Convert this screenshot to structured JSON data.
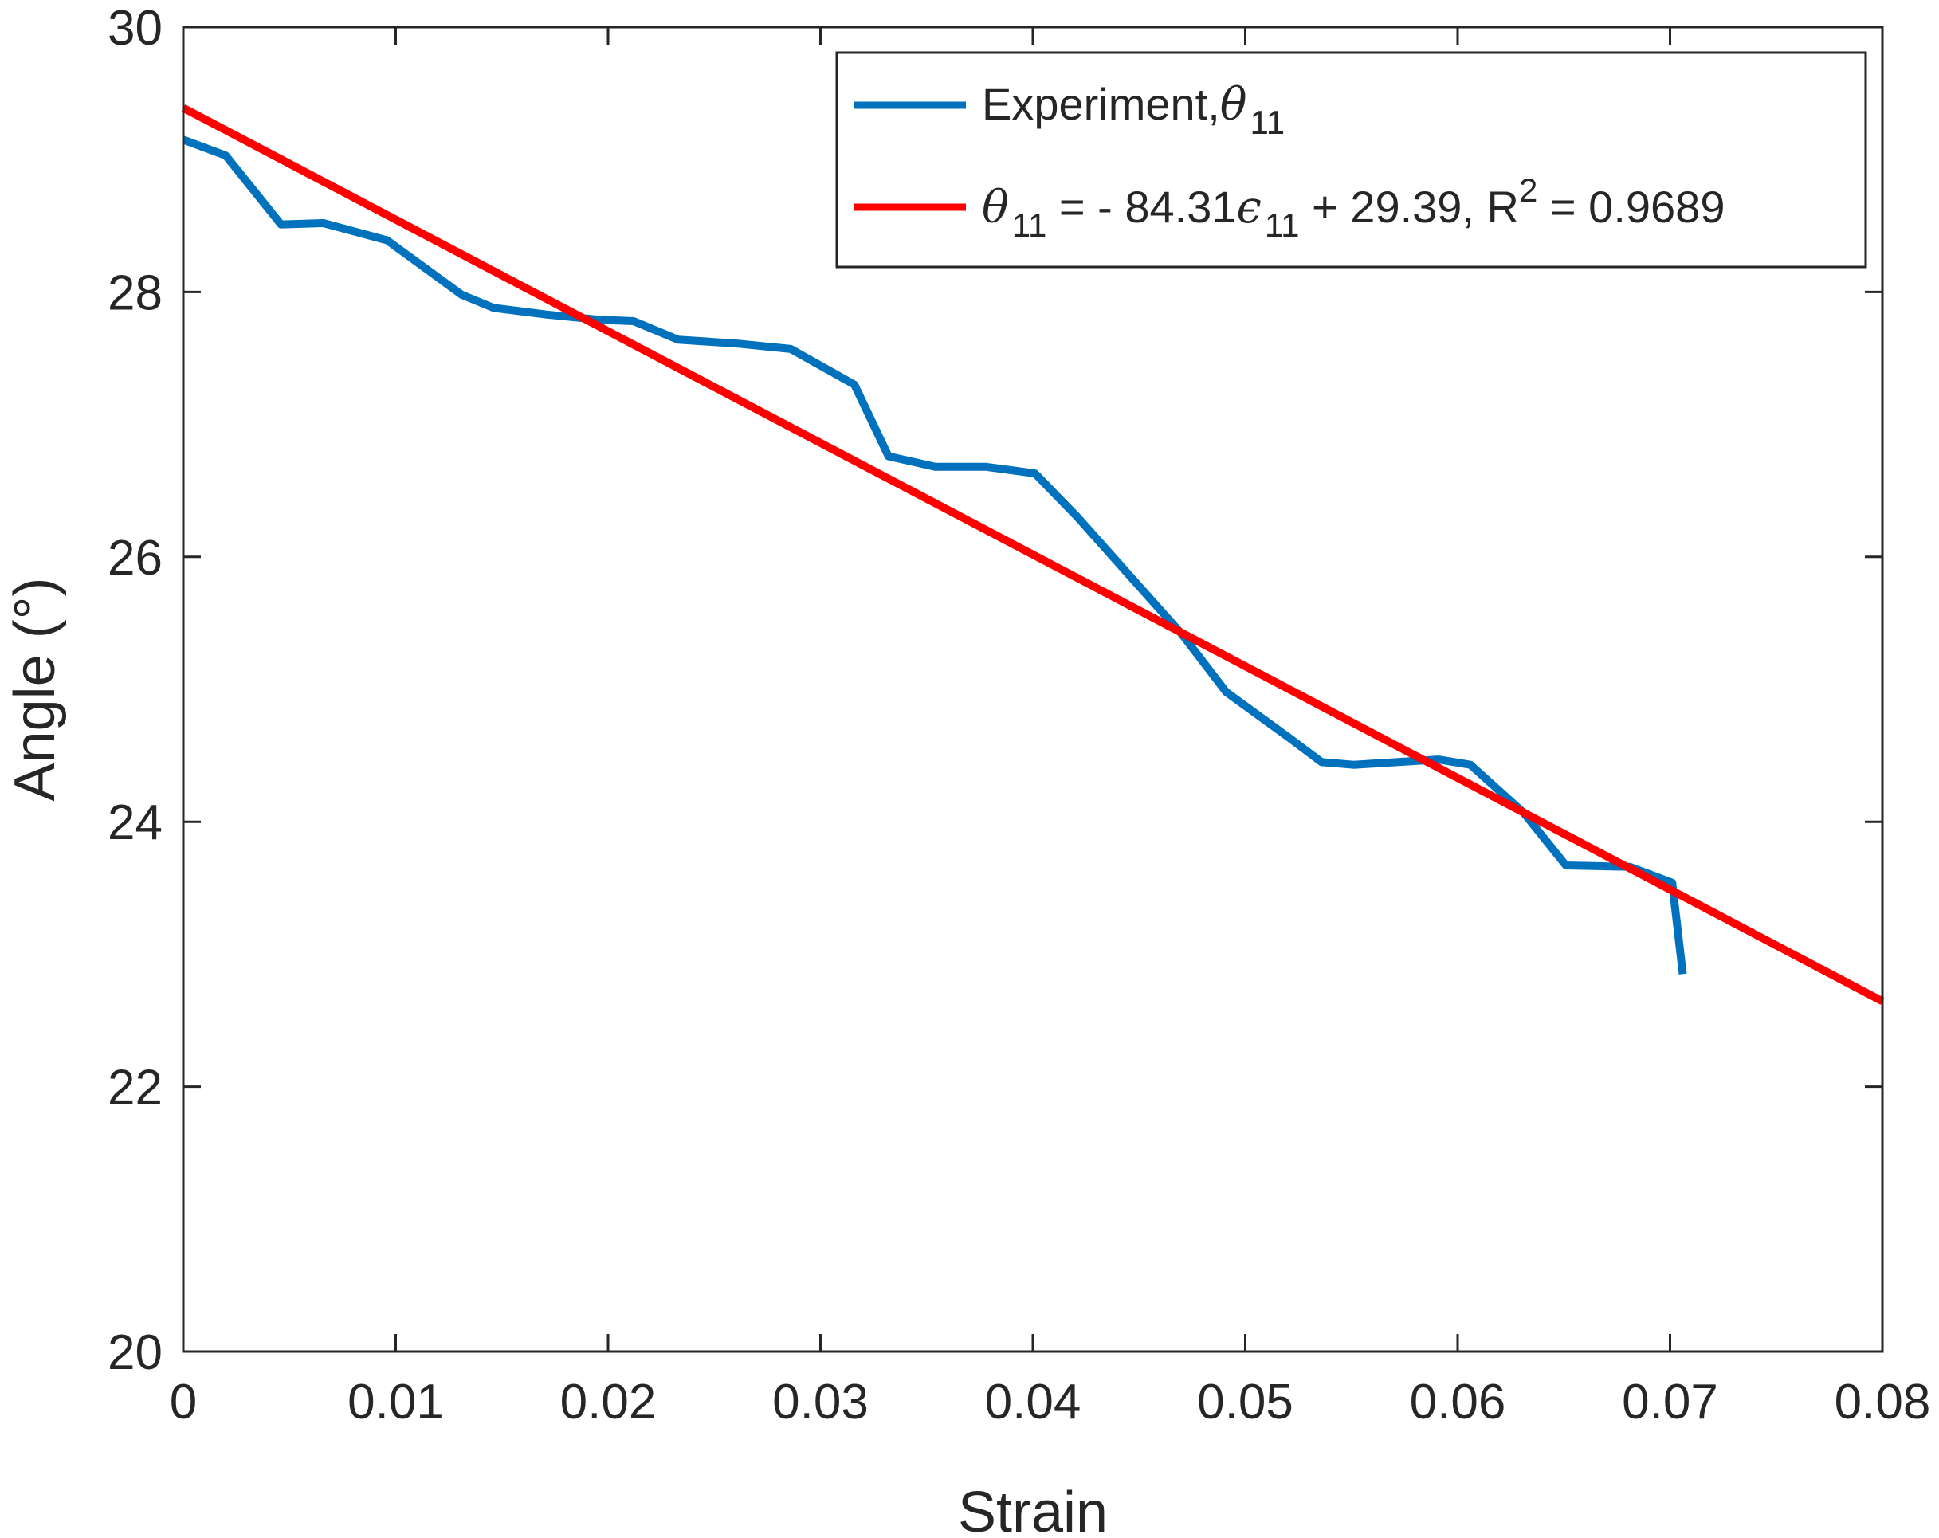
{
  "chart_data": {
    "type": "line",
    "xlabel": "Strain",
    "ylabel": "Angle (°)",
    "xlim": [
      0,
      0.08
    ],
    "ylim": [
      20,
      30
    ],
    "xticks": [
      0,
      0.01,
      0.02,
      0.03,
      0.04,
      0.05,
      0.06,
      0.07,
      0.08
    ],
    "xtick_labels": [
      "0",
      "0.01",
      "0.02",
      "0.03",
      "0.04",
      "0.05",
      "0.06",
      "0.07",
      "0.08"
    ],
    "yticks": [
      20,
      22,
      24,
      26,
      28,
      30
    ],
    "ytick_labels": [
      "20",
      "22",
      "24",
      "26",
      "28",
      "30"
    ],
    "grid": false,
    "legend_position": "top-right",
    "series": [
      {
        "name": "Experiment, θ11",
        "color": "#0072BD",
        "x": [
          0,
          0.002,
          0.0046,
          0.0066,
          0.0096,
          0.0131,
          0.0146,
          0.0171,
          0.0196,
          0.0212,
          0.0233,
          0.0261,
          0.0286,
          0.0316,
          0.0332,
          0.0354,
          0.0378,
          0.0401,
          0.0421,
          0.0446,
          0.047,
          0.0491,
          0.0521,
          0.0536,
          0.0551,
          0.0581,
          0.0591,
          0.0606,
          0.0631,
          0.0651,
          0.0681,
          0.0701,
          0.0706
        ],
        "y": [
          29.15,
          29.03,
          28.51,
          28.52,
          28.39,
          27.98,
          27.88,
          27.83,
          27.79,
          27.78,
          27.64,
          27.61,
          27.57,
          27.3,
          26.76,
          26.68,
          26.68,
          26.63,
          26.3,
          25.85,
          25.42,
          24.98,
          24.63,
          24.45,
          24.43,
          24.46,
          24.47,
          24.43,
          24.07,
          23.67,
          23.66,
          23.54,
          22.85
        ]
      },
      {
        "name": "θ11 = - 84.31ε11 + 29.39, R2 = 0.9689",
        "color": "#FF0000",
        "x": [
          0,
          0.08
        ],
        "y": [
          29.39,
          22.645
        ]
      }
    ],
    "legend": [
      {
        "prefix": "Experiment,",
        "symbol": "θ",
        "sub": "11",
        "rest": ""
      },
      {
        "symbol": "θ",
        "sub": "11",
        "mid": " = - 84.31",
        "symbol2": "ϵ",
        "sub2": "11",
        "after": " + 29.39, R",
        "sup": "2",
        "end": " = 0.9689"
      }
    ]
  }
}
